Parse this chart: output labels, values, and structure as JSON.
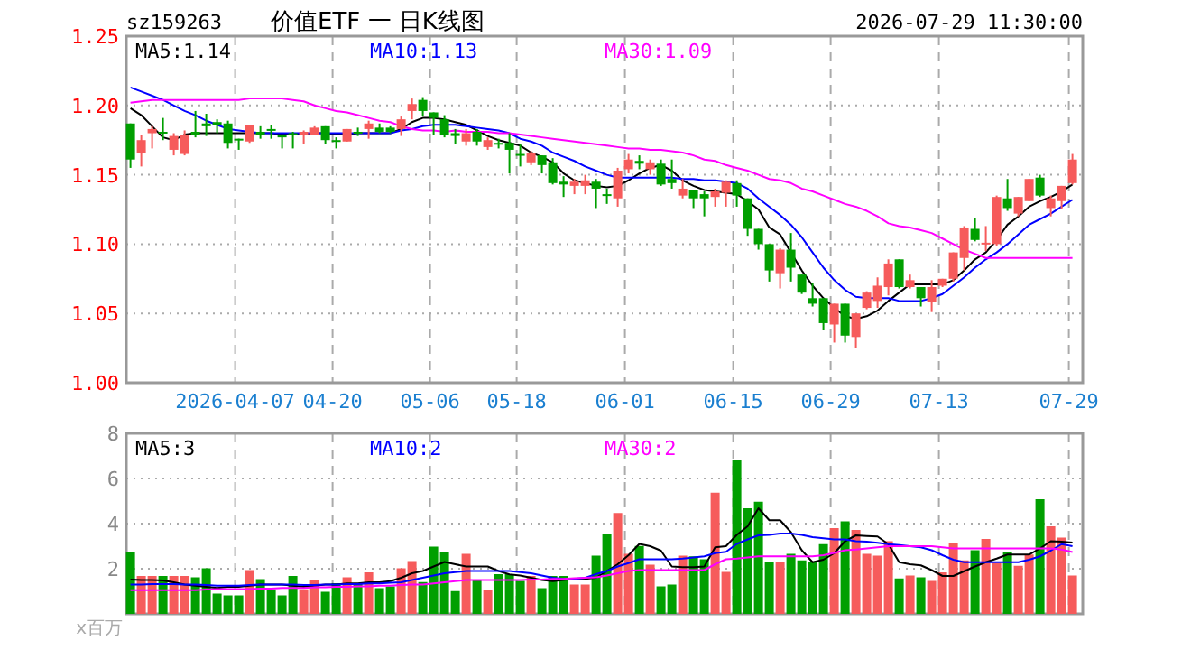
{
  "chart_data": [
    {
      "type": "candlestick",
      "title": "价值ETF 一 日K线图",
      "annotations": [
        "sz159263",
        "2026-07-29 11:30:00"
      ],
      "categories": [
        null,
        null,
        null,
        null,
        null,
        null,
        null,
        null,
        null,
        null,
        "2026-04-07",
        null,
        null,
        null,
        null,
        null,
        null,
        null,
        null,
        "04-20",
        null,
        null,
        null,
        null,
        null,
        null,
        null,
        null,
        "05-06",
        null,
        null,
        null,
        null,
        null,
        null,
        null,
        "05-18",
        null,
        null,
        null,
        null,
        null,
        null,
        null,
        null,
        null,
        "06-01",
        null,
        null,
        null,
        null,
        null,
        null,
        null,
        null,
        null,
        "06-15",
        null,
        null,
        null,
        null,
        null,
        null,
        null,
        null,
        "06-29",
        null,
        null,
        null,
        null,
        null,
        null,
        null,
        null,
        null,
        "07-13",
        null,
        null,
        null,
        null,
        null,
        null,
        null,
        null,
        null,
        null,
        null,
        "07-29"
      ],
      "ylim": [
        1.0,
        1.25
      ],
      "yticks": [
        {
          "value": 1.0,
          "label": "1.00"
        },
        1.05,
        {
          "value": 1.1,
          "label": "1.10"
        },
        1.15,
        {
          "value": 1.2,
          "label": "1.20"
        },
        1.25
      ],
      "grid": true,
      "legend": "top",
      "series": [
        {
          "ohlc": [
            [
              1.187,
              1.187,
              1.155,
              1.161
            ],
            [
              1.166,
              1.179,
              1.156,
              1.175
            ],
            [
              1.18,
              1.185,
              1.169,
              1.183
            ],
            [
              1.181,
              1.191,
              1.175,
              1.18
            ],
            [
              1.168,
              1.18,
              1.164,
              1.178
            ],
            [
              1.165,
              1.182,
              1.164,
              1.179
            ],
            [
              1.181,
              1.196,
              1.177,
              1.179
            ],
            [
              1.187,
              1.194,
              1.178,
              1.185
            ],
            [
              1.188,
              1.19,
              1.18,
              1.186
            ],
            [
              1.187,
              1.189,
              1.169,
              1.173
            ],
            [
              1.176,
              1.176,
              1.168,
              1.175
            ],
            [
              1.174,
              1.186,
              1.173,
              1.186
            ],
            [
              1.181,
              1.185,
              1.176,
              1.179
            ],
            [
              1.183,
              1.186,
              1.176,
              1.182
            ],
            [
              1.179,
              1.179,
              1.169,
              1.177
            ],
            [
              1.18,
              1.181,
              1.169,
              1.179
            ],
            [
              1.179,
              1.182,
              1.172,
              1.181
            ],
            [
              1.179,
              1.185,
              1.179,
              1.184
            ],
            [
              1.185,
              1.185,
              1.172,
              1.175
            ],
            [
              1.175,
              1.177,
              1.169,
              1.174
            ],
            [
              1.174,
              1.183,
              1.174,
              1.183
            ],
            [
              1.181,
              1.184,
              1.178,
              1.18
            ],
            [
              1.183,
              1.189,
              1.176,
              1.187
            ],
            [
              1.184,
              1.187,
              1.18,
              1.181
            ],
            [
              1.184,
              1.185,
              1.18,
              1.181
            ],
            [
              1.183,
              1.192,
              1.178,
              1.19
            ],
            [
              1.196,
              1.205,
              1.19,
              1.201
            ],
            [
              1.204,
              1.206,
              1.192,
              1.196
            ],
            [
              1.195,
              1.195,
              1.179,
              1.191
            ],
            [
              1.19,
              1.193,
              1.177,
              1.179
            ],
            [
              1.18,
              1.183,
              1.172,
              1.178
            ],
            [
              1.174,
              1.183,
              1.171,
              1.18
            ],
            [
              1.181,
              1.183,
              1.171,
              1.174
            ],
            [
              1.17,
              1.177,
              1.168,
              1.175
            ],
            [
              1.173,
              1.176,
              1.169,
              1.172
            ],
            [
              1.173,
              1.18,
              1.151,
              1.168
            ],
            [
              1.165,
              1.172,
              1.156,
              1.164
            ],
            [
              1.159,
              1.167,
              1.157,
              1.166
            ],
            [
              1.164,
              1.164,
              1.151,
              1.157
            ],
            [
              1.159,
              1.162,
              1.143,
              1.144
            ],
            [
              1.145,
              1.149,
              1.134,
              1.143
            ],
            [
              1.142,
              1.147,
              1.136,
              1.145
            ],
            [
              1.142,
              1.15,
              1.136,
              1.146
            ],
            [
              1.145,
              1.147,
              1.126,
              1.14
            ],
            [
              1.136,
              1.14,
              1.129,
              1.135
            ],
            [
              1.133,
              1.155,
              1.127,
              1.153
            ],
            [
              1.154,
              1.165,
              1.151,
              1.161
            ],
            [
              1.16,
              1.164,
              1.154,
              1.158
            ],
            [
              1.154,
              1.161,
              1.15,
              1.159
            ],
            [
              1.158,
              1.161,
              1.142,
              1.143
            ],
            [
              1.147,
              1.161,
              1.14,
              1.144
            ],
            [
              1.135,
              1.147,
              1.133,
              1.14
            ],
            [
              1.139,
              1.139,
              1.126,
              1.133
            ],
            [
              1.136,
              1.138,
              1.12,
              1.133
            ],
            [
              1.134,
              1.14,
              1.127,
              1.138
            ],
            [
              1.137,
              1.146,
              1.127,
              1.145
            ],
            [
              1.144,
              1.146,
              1.127,
              1.135
            ],
            [
              1.133,
              1.133,
              1.106,
              1.111
            ],
            [
              1.111,
              1.111,
              1.096,
              1.1
            ],
            [
              1.1,
              1.1,
              1.073,
              1.081
            ],
            [
              1.079,
              1.097,
              1.068,
              1.096
            ],
            [
              1.096,
              1.108,
              1.073,
              1.083
            ],
            [
              1.078,
              1.078,
              1.064,
              1.065
            ],
            [
              1.061,
              1.072,
              1.055,
              1.057
            ],
            [
              1.061,
              1.061,
              1.038,
              1.043
            ],
            [
              1.042,
              1.057,
              1.029,
              1.057
            ],
            [
              1.057,
              1.057,
              1.029,
              1.034
            ],
            [
              1.033,
              1.05,
              1.025,
              1.05
            ],
            [
              1.054,
              1.066,
              1.053,
              1.065
            ],
            [
              1.059,
              1.076,
              1.054,
              1.07
            ],
            [
              1.069,
              1.089,
              1.063,
              1.086
            ],
            [
              1.089,
              1.089,
              1.068,
              1.069
            ],
            [
              1.069,
              1.078,
              1.068,
              1.074
            ],
            [
              1.069,
              1.069,
              1.055,
              1.061
            ],
            [
              1.058,
              1.074,
              1.051,
              1.069
            ],
            [
              1.07,
              1.075,
              1.069,
              1.075
            ],
            [
              1.075,
              1.094,
              1.073,
              1.094
            ],
            [
              1.09,
              1.113,
              1.081,
              1.112
            ],
            [
              1.111,
              1.119,
              1.102,
              1.103
            ],
            [
              1.1,
              1.113,
              1.095,
              1.101
            ],
            [
              1.1,
              1.135,
              1.099,
              1.134
            ],
            [
              1.133,
              1.147,
              1.124,
              1.126
            ],
            [
              1.122,
              1.134,
              1.12,
              1.134
            ],
            [
              1.131,
              1.147,
              1.131,
              1.147
            ],
            [
              1.148,
              1.15,
              1.134,
              1.135
            ],
            [
              1.126,
              1.135,
              1.12,
              1.133
            ],
            [
              1.131,
              1.142,
              1.125,
              1.142
            ],
            [
              1.144,
              1.165,
              1.143,
              1.161
            ]
          ],
          "colors": [
            "#009f00",
            "#f65b5b",
            "#f65b5b",
            "#009f00",
            "#f65b5b",
            "#f65b5b",
            "#009f00",
            "#009f00",
            "#009f00",
            "#009f00",
            "#009f00",
            "#f65b5b",
            "#009f00",
            "#009f00",
            "#009f00",
            "#009f00",
            "#f65b5b",
            "#f65b5b",
            "#009f00",
            "#009f00",
            "#f65b5b",
            "#009f00",
            "#f65b5b",
            "#009f00",
            "#009f00",
            "#f65b5b",
            "#f65b5b",
            "#009f00",
            "#009f00",
            "#009f00",
            "#009f00",
            "#f65b5b",
            "#009f00",
            "#f65b5b",
            "#009f00",
            "#009f00",
            "#009f00",
            "#f65b5b",
            "#009f00",
            "#009f00",
            "#009f00",
            "#f65b5b",
            "#f65b5b",
            "#009f00",
            "#009f00",
            "#f65b5b",
            "#f65b5b",
            "#009f00",
            "#f65b5b",
            "#009f00",
            "#009f00",
            "#f65b5b",
            "#009f00",
            "#009f00",
            "#f65b5b",
            "#f65b5b",
            "#009f00",
            "#009f00",
            "#009f00",
            "#009f00",
            "#f65b5b",
            "#009f00",
            "#009f00",
            "#009f00",
            "#009f00",
            "#f65b5b",
            "#009f00",
            "#f65b5b",
            "#f65b5b",
            "#f65b5b",
            "#f65b5b",
            "#009f00",
            "#f65b5b",
            "#009f00",
            "#f65b5b",
            "#f65b5b",
            "#f65b5b",
            "#f65b5b",
            "#009f00",
            "#f65b5b",
            "#f65b5b",
            "#009f00",
            "#f65b5b",
            "#f65b5b",
            "#009f00",
            "#f65b5b",
            "#f65b5b",
            "#f65b5b"
          ]
        },
        {
          "type": "line",
          "name": "MA5:1.14",
          "color": "#000000",
          "values": [
            1.198,
            1.193,
            1.185,
            1.177,
            1.175,
            1.179,
            1.18,
            1.18,
            1.18,
            1.18,
            1.18,
            1.18,
            1.18,
            1.18,
            1.179,
            1.179,
            1.179,
            1.18,
            1.18,
            1.179,
            1.179,
            1.18,
            1.18,
            1.18,
            1.18,
            1.183,
            1.188,
            1.191,
            1.191,
            1.19,
            1.188,
            1.186,
            1.182,
            1.178,
            1.175,
            1.173,
            1.171,
            1.166,
            1.163,
            1.159,
            1.151,
            1.146,
            1.144,
            1.142,
            1.141,
            1.142,
            1.146,
            1.151,
            1.155,
            1.157,
            1.153,
            1.146,
            1.142,
            1.139,
            1.138,
            1.137,
            1.136,
            1.131,
            1.125,
            1.112,
            1.107,
            1.094,
            1.081,
            1.07,
            1.061,
            1.054,
            1.048,
            1.046,
            1.048,
            1.052,
            1.059,
            1.065,
            1.071,
            1.071,
            1.071,
            1.071,
            1.074,
            1.081,
            1.089,
            1.094,
            1.103,
            1.114,
            1.12,
            1.127,
            1.131,
            1.134,
            1.138,
            1.143
          ]
        },
        {
          "type": "line",
          "name": "MA10:1.13",
          "color": "#0000ff",
          "values": [
            1.213,
            1.21,
            1.207,
            1.204,
            1.2,
            1.196,
            1.193,
            1.189,
            1.186,
            1.183,
            1.182,
            1.181,
            1.18,
            1.18,
            1.18,
            1.18,
            1.18,
            1.18,
            1.18,
            1.18,
            1.18,
            1.18,
            1.18,
            1.18,
            1.18,
            1.182,
            1.183,
            1.185,
            1.186,
            1.186,
            1.186,
            1.185,
            1.184,
            1.183,
            1.182,
            1.18,
            1.176,
            1.174,
            1.171,
            1.166,
            1.163,
            1.16,
            1.156,
            1.153,
            1.15,
            1.148,
            1.148,
            1.148,
            1.148,
            1.148,
            1.148,
            1.147,
            1.147,
            1.146,
            1.146,
            1.145,
            1.144,
            1.14,
            1.133,
            1.127,
            1.121,
            1.114,
            1.105,
            1.094,
            1.083,
            1.074,
            1.067,
            1.062,
            1.061,
            1.061,
            1.061,
            1.059,
            1.059,
            1.059,
            1.061,
            1.064,
            1.07,
            1.076,
            1.083,
            1.089,
            1.094,
            1.1,
            1.107,
            1.114,
            1.118,
            1.122,
            1.127,
            1.132
          ]
        },
        {
          "type": "line",
          "name": "MA30:1.09",
          "color": "#ff00ff",
          "values": [
            1.202,
            1.203,
            1.204,
            1.204,
            1.204,
            1.204,
            1.204,
            1.204,
            1.204,
            1.204,
            1.204,
            1.205,
            1.205,
            1.205,
            1.205,
            1.204,
            1.203,
            1.2,
            1.198,
            1.196,
            1.195,
            1.193,
            1.191,
            1.189,
            1.188,
            1.185,
            1.183,
            1.182,
            1.182,
            1.181,
            1.182,
            1.181,
            1.181,
            1.181,
            1.18,
            1.18,
            1.179,
            1.178,
            1.177,
            1.176,
            1.175,
            1.174,
            1.173,
            1.172,
            1.171,
            1.17,
            1.169,
            1.169,
            1.168,
            1.168,
            1.167,
            1.166,
            1.164,
            1.161,
            1.16,
            1.157,
            1.155,
            1.153,
            1.15,
            1.147,
            1.146,
            1.144,
            1.14,
            1.138,
            1.135,
            1.132,
            1.129,
            1.127,
            1.124,
            1.12,
            1.115,
            1.113,
            1.112,
            1.11,
            1.108,
            1.104,
            1.1,
            1.096,
            1.093,
            1.09,
            1.09,
            1.09,
            1.09,
            1.09,
            1.09,
            1.09,
            1.09,
            1.09
          ]
        }
      ]
    },
    {
      "type": "bar",
      "annotations": [
        "x百万"
      ],
      "categories": [
        null,
        null,
        null,
        null,
        null,
        null,
        null,
        null,
        null,
        null,
        null,
        null,
        null,
        null,
        null,
        null,
        null,
        null,
        null,
        null,
        null,
        null,
        null,
        null,
        null,
        null,
        null,
        null,
        null,
        null,
        null,
        null,
        null,
        null,
        null,
        null,
        null,
        null,
        null,
        null,
        null,
        null,
        null,
        null,
        null,
        null,
        null,
        null,
        null,
        null,
        null,
        null,
        null,
        null,
        null,
        null,
        null,
        null,
        null,
        null,
        null,
        null,
        null,
        null,
        null,
        null,
        null,
        null,
        null,
        null,
        null,
        null,
        null,
        null,
        null,
        null,
        null,
        null,
        null,
        null,
        null,
        null,
        null,
        null,
        null,
        null,
        null,
        null
      ],
      "ylim": [
        0,
        8
      ],
      "yticks": [
        2,
        4,
        6,
        8
      ],
      "grid": true,
      "legend": "top",
      "series": [
        {
          "values": [
            2.74,
            1.68,
            1.68,
            1.68,
            1.68,
            1.68,
            1.62,
            2.02,
            0.9,
            0.82,
            0.82,
            1.94,
            1.54,
            1.09,
            0.82,
            1.68,
            1.09,
            1.49,
            0.98,
            1.36,
            1.62,
            1.36,
            1.84,
            1.14,
            1.22,
            2.02,
            2.34,
            1.41,
            2.98,
            2.74,
            1.01,
            2.66,
            1.49,
            1.06,
            1.76,
            1.76,
            1.46,
            1.68,
            1.14,
            1.68,
            1.68,
            1.3,
            1.3,
            2.58,
            3.54,
            4.47,
            2.66,
            3.01,
            2.18,
            1.22,
            1.3,
            2.58,
            2.55,
            2.42,
            5.37,
            1.86,
            6.81,
            4.68,
            4.97,
            2.29,
            2.29,
            2.66,
            2.37,
            2.29,
            3.09,
            3.8,
            4.1,
            3.72,
            2.66,
            2.58,
            3.22,
            1.57,
            1.7,
            1.62,
            1.46,
            1.84,
            3.14,
            2.37,
            2.82,
            3.32,
            2.26,
            2.74,
            2.13,
            2.63,
            5.08,
            3.88,
            3.38,
            1.7
          ],
          "colors": [
            "#009f00",
            "#f65b5b",
            "#f65b5b",
            "#009f00",
            "#f65b5b",
            "#f65b5b",
            "#009f00",
            "#009f00",
            "#009f00",
            "#009f00",
            "#009f00",
            "#f65b5b",
            "#009f00",
            "#009f00",
            "#009f00",
            "#009f00",
            "#f65b5b",
            "#f65b5b",
            "#009f00",
            "#009f00",
            "#f65b5b",
            "#009f00",
            "#f65b5b",
            "#009f00",
            "#009f00",
            "#f65b5b",
            "#f65b5b",
            "#009f00",
            "#009f00",
            "#009f00",
            "#009f00",
            "#f65b5b",
            "#009f00",
            "#f65b5b",
            "#009f00",
            "#009f00",
            "#009f00",
            "#f65b5b",
            "#009f00",
            "#009f00",
            "#009f00",
            "#f65b5b",
            "#f65b5b",
            "#009f00",
            "#009f00",
            "#f65b5b",
            "#f65b5b",
            "#009f00",
            "#f65b5b",
            "#009f00",
            "#009f00",
            "#f65b5b",
            "#009f00",
            "#009f00",
            "#f65b5b",
            "#f65b5b",
            "#009f00",
            "#009f00",
            "#009f00",
            "#009f00",
            "#f65b5b",
            "#009f00",
            "#009f00",
            "#009f00",
            "#009f00",
            "#f65b5b",
            "#009f00",
            "#f65b5b",
            "#f65b5b",
            "#f65b5b",
            "#f65b5b",
            "#009f00",
            "#f65b5b",
            "#009f00",
            "#f65b5b",
            "#f65b5b",
            "#f65b5b",
            "#f65b5b",
            "#009f00",
            "#f65b5b",
            "#f65b5b",
            "#009f00",
            "#f65b5b",
            "#f65b5b",
            "#009f00",
            "#f65b5b",
            "#f65b5b",
            "#f65b5b"
          ]
        },
        {
          "type": "line",
          "name": "MA5:3",
          "color": "#000000",
          "values": [
            1.52,
            1.5,
            1.5,
            1.48,
            1.4,
            1.3,
            1.25,
            1.2,
            1.15,
            1.2,
            1.2,
            1.25,
            1.3,
            1.3,
            1.3,
            1.25,
            1.2,
            1.25,
            1.3,
            1.3,
            1.35,
            1.35,
            1.4,
            1.4,
            1.45,
            1.6,
            1.8,
            1.9,
            2.1,
            2.3,
            2.2,
            2.1,
            2.1,
            2.1,
            1.9,
            1.75,
            1.7,
            1.6,
            1.5,
            1.45,
            1.5,
            1.55,
            1.55,
            1.6,
            1.9,
            2.2,
            2.6,
            3.1,
            3.0,
            2.8,
            2.1,
            2.07,
            2.07,
            2.1,
            2.95,
            3.0,
            3.5,
            3.88,
            4.68,
            4.15,
            4.15,
            3.62,
            2.82,
            2.29,
            2.4,
            2.69,
            3.22,
            3.48,
            3.45,
            3.43,
            3.09,
            2.29,
            2.2,
            2.15,
            1.94,
            1.68,
            1.68,
            1.89,
            2.1,
            2.29,
            2.45,
            2.63,
            2.63,
            2.63,
            2.9,
            3.22,
            3.2,
            3.16
          ]
        },
        {
          "type": "line",
          "name": "MA10:2",
          "color": "#0000ff",
          "values": [
            1.3,
            1.3,
            1.32,
            1.32,
            1.32,
            1.3,
            1.3,
            1.28,
            1.25,
            1.25,
            1.25,
            1.28,
            1.3,
            1.3,
            1.3,
            1.3,
            1.28,
            1.28,
            1.3,
            1.3,
            1.32,
            1.32,
            1.35,
            1.35,
            1.38,
            1.4,
            1.5,
            1.6,
            1.7,
            1.8,
            1.85,
            1.9,
            1.9,
            1.9,
            1.9,
            1.9,
            1.85,
            1.8,
            1.7,
            1.6,
            1.55,
            1.55,
            1.6,
            1.76,
            1.9,
            2.1,
            2.25,
            2.42,
            2.42,
            2.42,
            2.42,
            2.45,
            2.5,
            2.55,
            2.69,
            2.75,
            3.1,
            3.3,
            3.48,
            3.5,
            3.56,
            3.56,
            3.5,
            3.4,
            3.35,
            3.3,
            3.3,
            3.22,
            3.2,
            3.15,
            3.09,
            3.05,
            3.0,
            2.95,
            2.82,
            2.6,
            2.4,
            2.29,
            2.29,
            2.29,
            2.29,
            2.29,
            2.29,
            2.4,
            2.55,
            2.8,
            3.09,
            3.0
          ]
        },
        {
          "type": "line",
          "name": "MA30:2",
          "color": "#ff00ff",
          "values": [
            1.05,
            1.05,
            1.05,
            1.05,
            1.05,
            1.05,
            1.05,
            1.08,
            1.1,
            1.1,
            1.1,
            1.1,
            1.12,
            1.12,
            1.15,
            1.15,
            1.15,
            1.18,
            1.18,
            1.2,
            1.2,
            1.22,
            1.22,
            1.25,
            1.25,
            1.28,
            1.3,
            1.3,
            1.35,
            1.4,
            1.45,
            1.5,
            1.5,
            1.5,
            1.5,
            1.5,
            1.5,
            1.52,
            1.52,
            1.55,
            1.55,
            1.58,
            1.6,
            1.62,
            1.7,
            1.8,
            1.9,
            1.94,
            1.94,
            1.94,
            1.94,
            1.94,
            1.94,
            1.94,
            2.2,
            2.42,
            2.45,
            2.5,
            2.55,
            2.55,
            2.55,
            2.55,
            2.55,
            2.55,
            2.6,
            2.7,
            2.82,
            2.85,
            2.9,
            2.95,
            3.0,
            3.0,
            3.0,
            3.0,
            3.0,
            2.95,
            2.9,
            2.9,
            2.9,
            2.9,
            2.9,
            2.9,
            2.9,
            2.9,
            2.9,
            2.9,
            2.85,
            2.74
          ]
        }
      ]
    }
  ]
}
